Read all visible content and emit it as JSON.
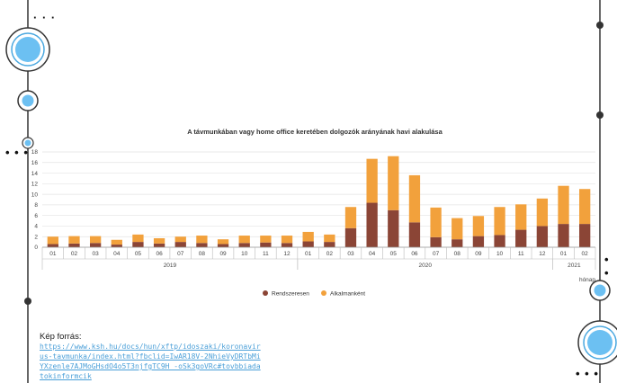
{
  "chart_data": {
    "type": "bar",
    "stacked": true,
    "title": "A távmunkában vagy home office keretében dolgozók arányának havi alakulása",
    "xlabel": "hónap",
    "ylabel": "",
    "ylim": [
      0,
      18
    ],
    "yticks": [
      0,
      2,
      4,
      6,
      8,
      10,
      12,
      14,
      16,
      18
    ],
    "categories": [
      "01",
      "02",
      "03",
      "04",
      "05",
      "06",
      "07",
      "08",
      "09",
      "10",
      "11",
      "12",
      "01",
      "02",
      "03",
      "04",
      "05",
      "06",
      "07",
      "08",
      "09",
      "10",
      "11",
      "12",
      "01",
      "02"
    ],
    "year_groups": [
      {
        "label": "2019",
        "start": 0,
        "count": 12
      },
      {
        "label": "2020",
        "start": 12,
        "count": 12
      },
      {
        "label": "2021",
        "start": 24,
        "count": 2
      }
    ],
    "series": [
      {
        "name": "Rendszeresen",
        "color": "#8b4536",
        "values": [
          0.6,
          0.7,
          0.8,
          0.5,
          1.0,
          0.7,
          1.0,
          0.8,
          0.6,
          0.8,
          0.9,
          0.8,
          1.1,
          1.0,
          3.6,
          8.4,
          7.0,
          4.7,
          1.9,
          1.5,
          2.1,
          2.3,
          3.3,
          4.0,
          4.4,
          4.4
        ]
      },
      {
        "name": "Alkalmanként",
        "color": "#f2a13c",
        "values": [
          1.4,
          1.4,
          1.3,
          0.9,
          1.4,
          1.0,
          1.0,
          1.4,
          0.9,
          1.4,
          1.3,
          1.4,
          1.8,
          1.4,
          4.0,
          8.3,
          10.2,
          8.9,
          5.6,
          4.0,
          3.8,
          5.3,
          4.8,
          5.2,
          7.2,
          6.6
        ]
      }
    ],
    "legend_position": "bottom",
    "grid": true
  },
  "source": {
    "label": "Kép forrás:",
    "link": "https://www.ksh.hu/docs/hun/xftp/idoszaki/koronavirus-tavmunka/index.html?fbclid=IwAR18V-2NhieVyDRTbMiYXzenle7AJMoGHsdO4o5T3njfgTC9H_-oSk3goVRc#tovbbiadatokinformcik"
  }
}
